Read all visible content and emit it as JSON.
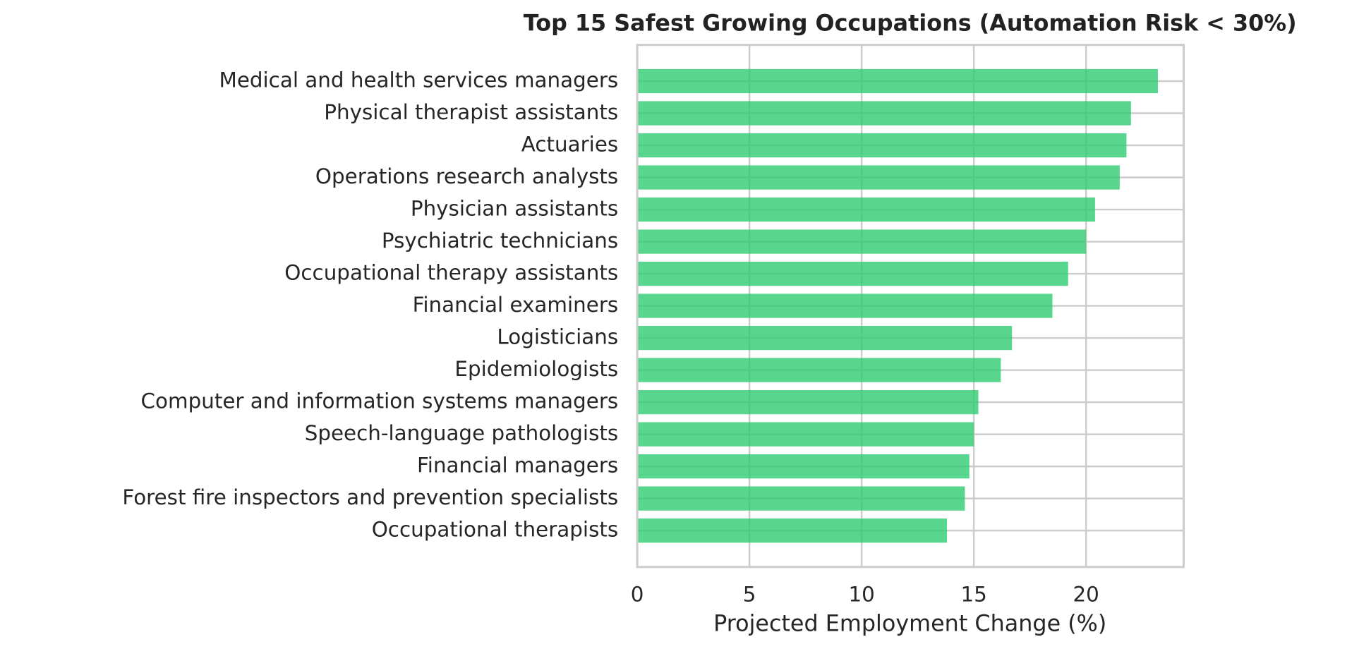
{
  "chart_data": {
    "type": "barh",
    "title": "Top 15 Safest Growing Occupations (Automation Risk < 30%)",
    "x_label": "Projected Employment Change (%)",
    "categories": [
      "Medical and health services managers",
      "Physical therapist assistants",
      "Actuaries",
      "Operations research analysts",
      "Physician assistants",
      "Psychiatric technicians",
      "Occupational therapy assistants",
      "Financial examiners",
      "Logisticians",
      "Epidemiologists",
      "Computer and information systems managers",
      "Speech-language pathologists",
      "Financial managers",
      "Forest fire inspectors and prevention specialists",
      "Occupational therapists"
    ],
    "values": [
      23.2,
      22.0,
      21.8,
      21.5,
      20.4,
      20.0,
      19.2,
      18.5,
      16.7,
      16.2,
      15.2,
      15.0,
      14.8,
      14.6,
      13.8
    ],
    "color": "#2ecc71",
    "xlim": [
      0,
      24.35
    ],
    "xticks": [
      0,
      5,
      10,
      15,
      20
    ],
    "grid": true
  }
}
